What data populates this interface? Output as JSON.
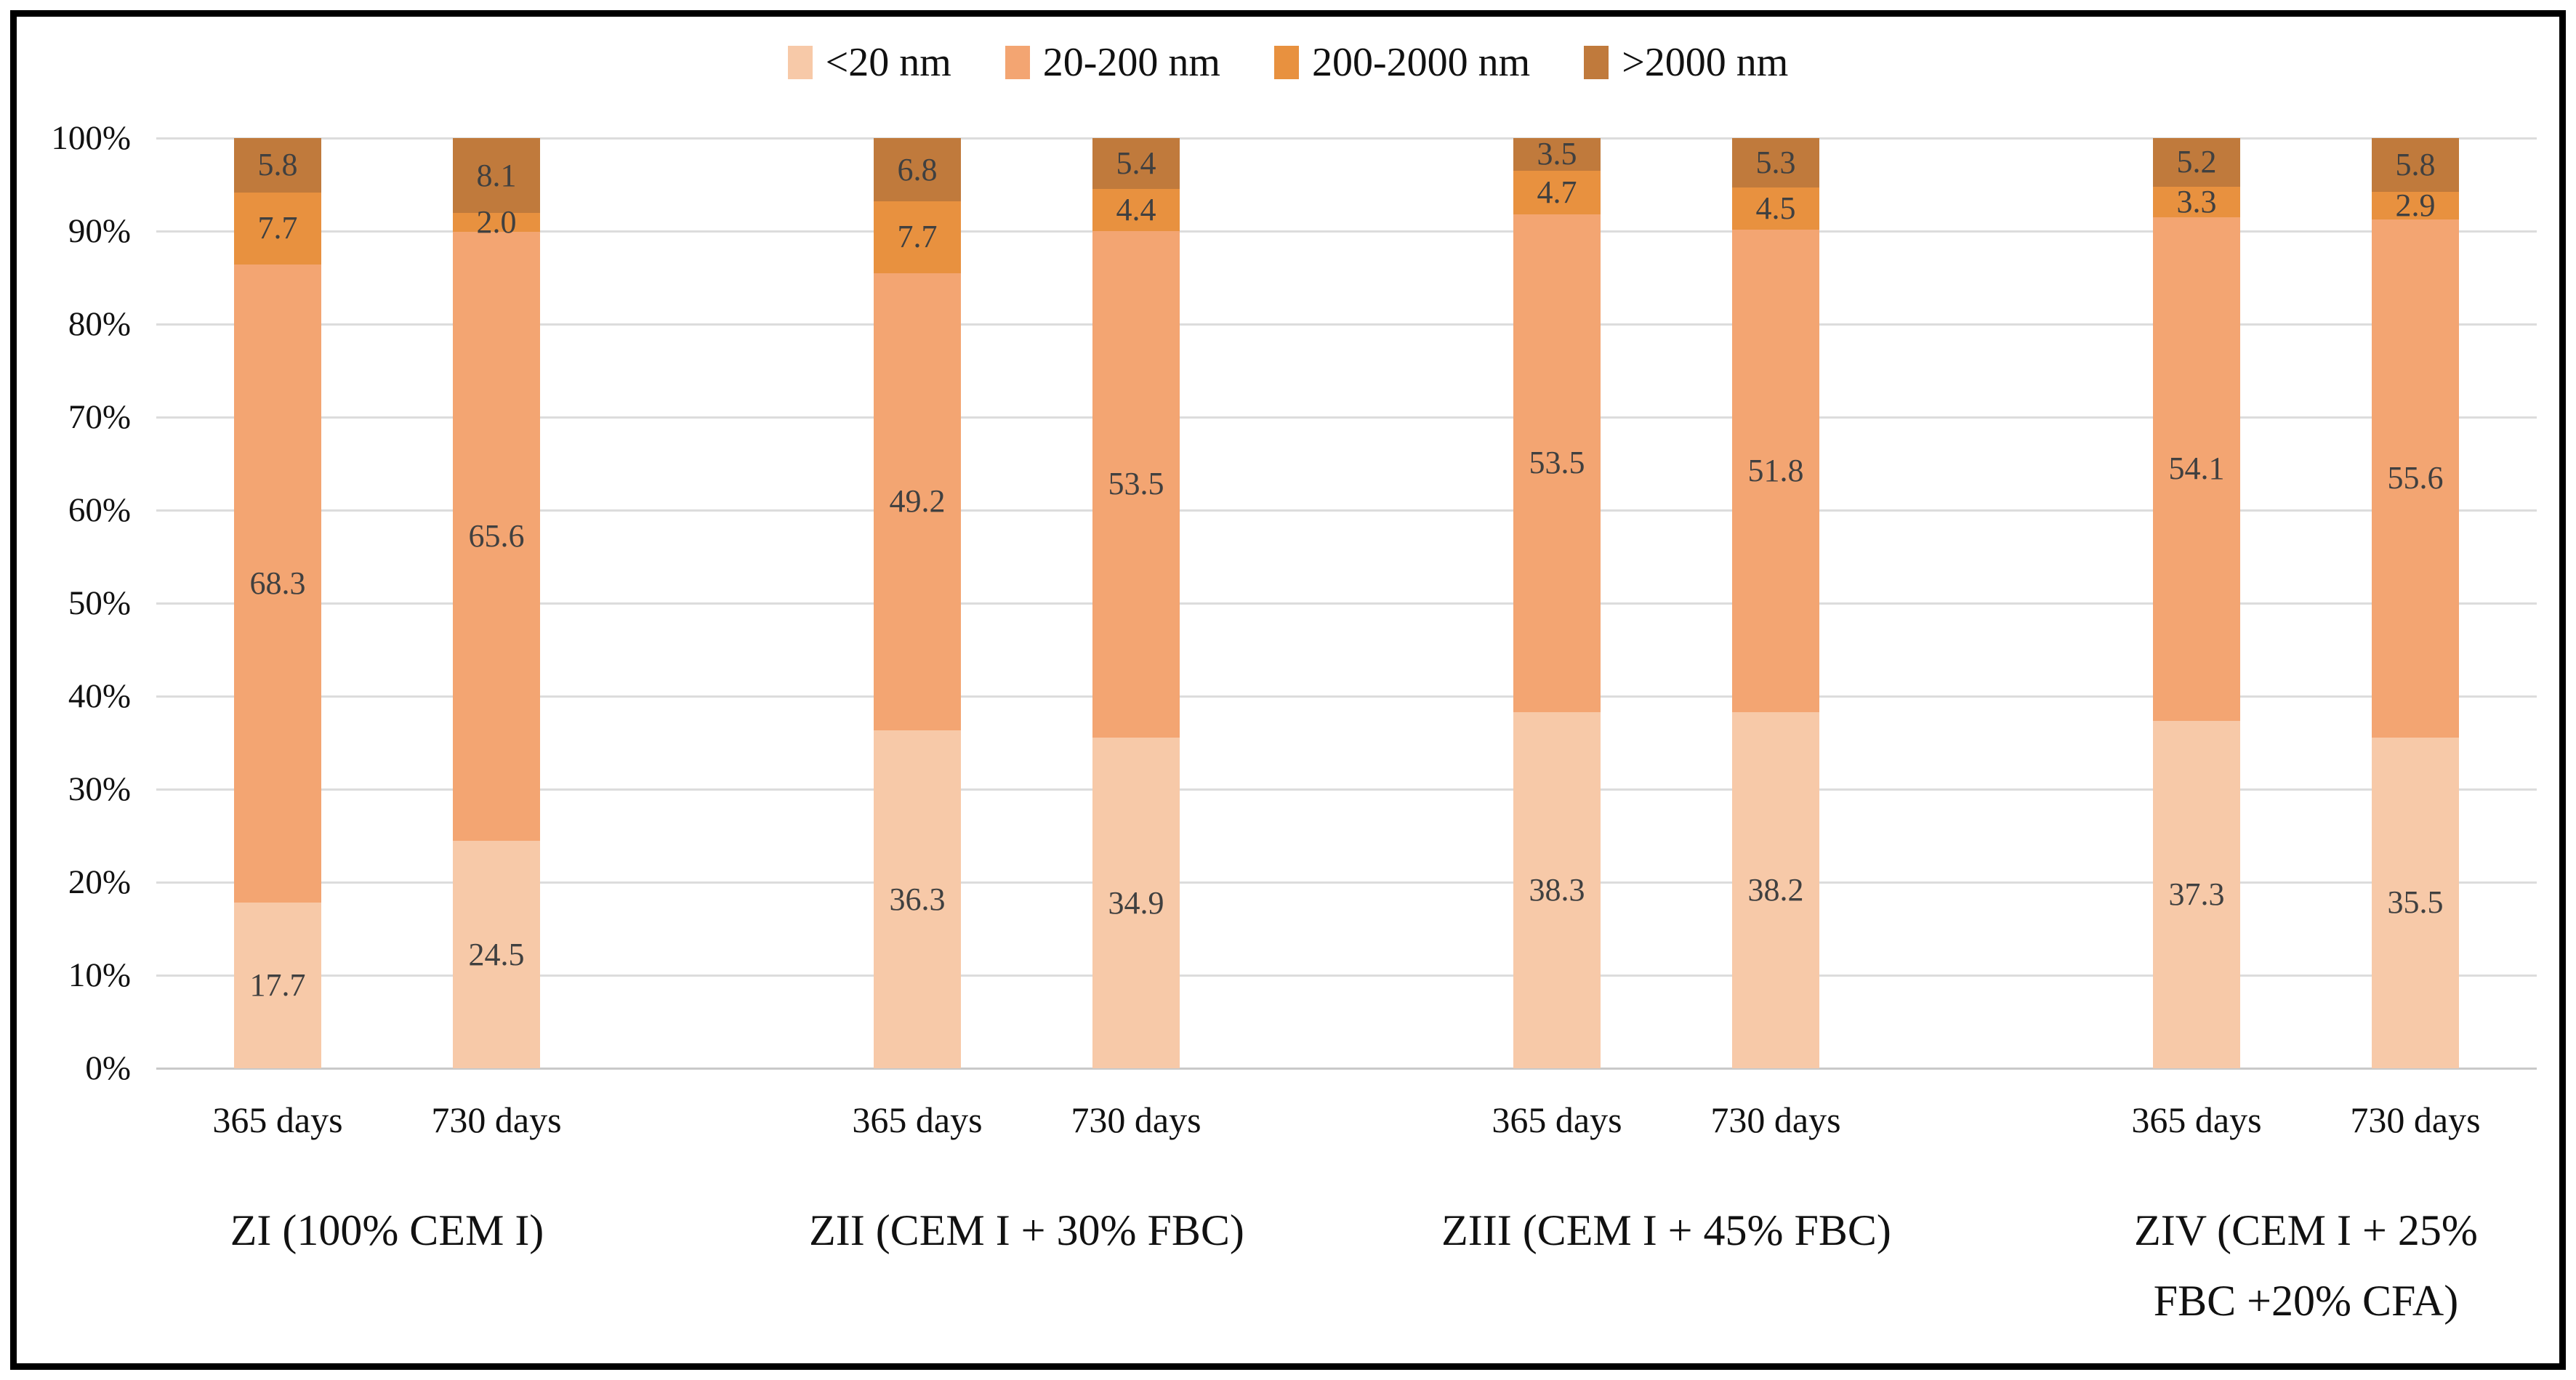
{
  "legend": {
    "items": [
      {
        "label": "<20 nm",
        "color": "#f7c9a8"
      },
      {
        "label": "20-200 nm",
        "color": "#f3a572"
      },
      {
        "label": "200-2000 nm",
        "color": "#e8913f"
      },
      {
        "label": ">2000 nm",
        "color": "#c07a3c"
      }
    ]
  },
  "y_axis": {
    "tick_labels": [
      "100%",
      "90%",
      "80%",
      "70%",
      "60%",
      "50%",
      "40%",
      "30%",
      "20%",
      "10%",
      "0%"
    ]
  },
  "chart_data": {
    "type": "bar",
    "stacked": "percent",
    "title": "",
    "xlabel": "",
    "ylabel": "",
    "ylim": [
      0,
      100
    ],
    "grid": true,
    "legend_position": "top",
    "series_names": [
      "<20 nm",
      "20-200 nm",
      "200-2000 nm",
      ">2000 nm"
    ],
    "series_colors": [
      "#f7c9a8",
      "#f3a572",
      "#e8913f",
      "#c07a3c"
    ],
    "value_label_decimals": 1,
    "groups": [
      {
        "label_lines": [
          "ZI (100% CEM I)"
        ],
        "bars": [
          {
            "category": "365 days",
            "values": [
              17.7,
              68.3,
              7.7,
              5.8
            ]
          },
          {
            "category": "730 days",
            "values": [
              24.5,
              65.6,
              2.0,
              8.1
            ]
          }
        ]
      },
      {
        "label_lines": [
          "ZII (CEM I + 30% FBC)"
        ],
        "bars": [
          {
            "category": "365 days",
            "values": [
              36.3,
              49.2,
              7.7,
              6.8
            ]
          },
          {
            "category": "730 days",
            "values": [
              34.9,
              53.5,
              4.4,
              5.4
            ]
          }
        ]
      },
      {
        "label_lines": [
          "ZIII (CEM I + 45% FBC)"
        ],
        "bars": [
          {
            "category": "365 days",
            "values": [
              38.3,
              53.5,
              4.7,
              3.5
            ]
          },
          {
            "category": "730 days",
            "values": [
              38.2,
              51.8,
              4.5,
              5.3
            ]
          }
        ]
      },
      {
        "label_lines": [
          "ZIV (CEM I + 25%",
          "FBC +20% CFA)"
        ],
        "bars": [
          {
            "category": "365 days",
            "values": [
              37.3,
              54.1,
              3.3,
              5.2
            ]
          },
          {
            "category": "730 days",
            "values": [
              35.5,
              55.6,
              2.9,
              5.8
            ]
          }
        ]
      }
    ]
  }
}
